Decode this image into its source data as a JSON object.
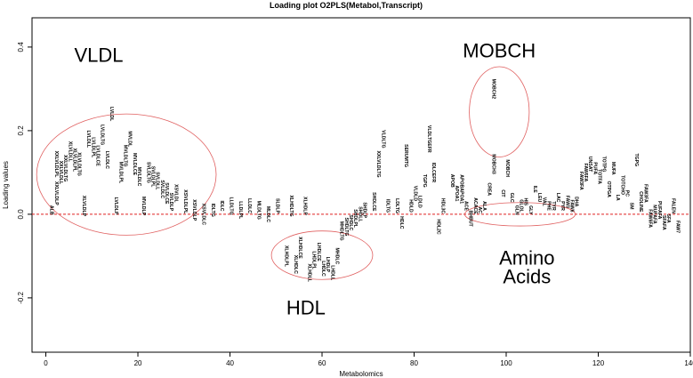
{
  "chart_data": {
    "type": "scatter",
    "title": "Loading plot O2PLS(Metabol,Transcript)",
    "xlabel": "Metabolomics",
    "ylabel": "Loading values",
    "xlim": [
      -3,
      140
    ],
    "ylim": [
      -0.33,
      0.47
    ],
    "x_ticks": [
      0,
      20,
      40,
      60,
      80,
      100,
      120,
      140
    ],
    "y_ticks": [
      -0.2,
      0.0,
      0.2,
      0.4
    ],
    "reference_line": {
      "y": 0.0,
      "style": "dashed",
      "color": "#e02020"
    },
    "points": [
      {
        "x": 1,
        "y": 0.01,
        "label": "ALB"
      },
      {
        "x": 2,
        "y": 0.05,
        "label": "XXLVLDLP"
      },
      {
        "x": 2,
        "y": 0.12,
        "label": "XXLVLDLPL"
      },
      {
        "x": 3,
        "y": 0.1,
        "label": "XXLVLDLL"
      },
      {
        "x": 4,
        "y": 0.11,
        "label": "XXLVLDLTG"
      },
      {
        "x": 5,
        "y": 0.15,
        "label": "XLVLDLL"
      },
      {
        "x": 6,
        "y": 0.13,
        "label": "XLVLDLPL"
      },
      {
        "x": 7,
        "y": 0.12,
        "label": "XLVLDLTG"
      },
      {
        "x": 8,
        "y": 0.02,
        "label": "XLVLDLP"
      },
      {
        "x": 9,
        "y": 0.18,
        "label": "LVLDLL"
      },
      {
        "x": 10,
        "y": 0.16,
        "label": "LVLDLPL"
      },
      {
        "x": 11,
        "y": 0.14,
        "label": "LVLDLCE"
      },
      {
        "x": 12,
        "y": 0.19,
        "label": "LVLDLTG"
      },
      {
        "x": 13,
        "y": 0.13,
        "label": "LVLDLC"
      },
      {
        "x": 14,
        "y": 0.24,
        "label": "LVLDL"
      },
      {
        "x": 15,
        "y": 0.02,
        "label": "LVLDLP"
      },
      {
        "x": 16,
        "y": 0.1,
        "label": "MVLDLPL"
      },
      {
        "x": 17,
        "y": 0.14,
        "label": "MVLDLTG"
      },
      {
        "x": 18,
        "y": 0.18,
        "label": "MVLDL"
      },
      {
        "x": 19,
        "y": 0.12,
        "label": "MVLDLCE"
      },
      {
        "x": 20,
        "y": 0.09,
        "label": "MVLDLC"
      },
      {
        "x": 21,
        "y": 0.02,
        "label": "MVLDLP"
      },
      {
        "x": 22,
        "y": 0.1,
        "label": "SVLDLTG"
      },
      {
        "x": 23,
        "y": 0.09,
        "label": "SVLDLPL"
      },
      {
        "x": 24,
        "y": 0.08,
        "label": "SVLDLL"
      },
      {
        "x": 25,
        "y": 0.06,
        "label": "SVLDLC"
      },
      {
        "x": 26,
        "y": 0.05,
        "label": "SVLDLCE"
      },
      {
        "x": 27,
        "y": 0.03,
        "label": "SVLDLP"
      },
      {
        "x": 28,
        "y": 0.05,
        "label": "XSVLDL"
      },
      {
        "x": 30,
        "y": 0.03,
        "label": "XSVLDLPL"
      },
      {
        "x": 32,
        "y": 0.01,
        "label": "XSVLDLP"
      },
      {
        "x": 34,
        "y": 0.0,
        "label": "XSVLDLC"
      },
      {
        "x": 36,
        "y": 0.01,
        "label": "IDLTG"
      },
      {
        "x": 38,
        "y": 0.02,
        "label": "IDLC"
      },
      {
        "x": 40,
        "y": 0.02,
        "label": "LLDLTG"
      },
      {
        "x": 42,
        "y": 0.01,
        "label": "LLDLPL"
      },
      {
        "x": 44,
        "y": 0.02,
        "label": "LLDLC"
      },
      {
        "x": 46,
        "y": 0.01,
        "label": "MLDLTG"
      },
      {
        "x": 48,
        "y": 0.0,
        "label": "MLDLC"
      },
      {
        "x": 50,
        "y": 0.02,
        "label": "SLDLP"
      },
      {
        "x": 52,
        "y": -0.1,
        "label": "XLHDLPL"
      },
      {
        "x": 53,
        "y": 0.02,
        "label": "XLHDLTG"
      },
      {
        "x": 54,
        "y": -0.12,
        "label": "XLHDLC"
      },
      {
        "x": 55,
        "y": -0.08,
        "label": "XLHDLCE"
      },
      {
        "x": 56,
        "y": 0.02,
        "label": "XLHDLP"
      },
      {
        "x": 57,
        "y": -0.14,
        "label": "XLHDLL"
      },
      {
        "x": 58,
        "y": -0.11,
        "label": "LHDLPL"
      },
      {
        "x": 59,
        "y": -0.09,
        "label": "LHDLCE"
      },
      {
        "x": 60,
        "y": -0.13,
        "label": "LHDLC"
      },
      {
        "x": 61,
        "y": -0.12,
        "label": "LHDLP"
      },
      {
        "x": 62,
        "y": -0.14,
        "label": "LHDLL"
      },
      {
        "x": 63,
        "y": -0.1,
        "label": "MHDLC"
      },
      {
        "x": 64,
        "y": -0.04,
        "label": "MHDLTG"
      },
      {
        "x": 65,
        "y": -0.03,
        "label": "SHDLTG"
      },
      {
        "x": 66,
        "y": -0.02,
        "label": "SHDLC"
      },
      {
        "x": 67,
        "y": -0.01,
        "label": "SHDLPL"
      },
      {
        "x": 68,
        "y": 0.0,
        "label": "SHDLL"
      },
      {
        "x": 69,
        "y": 0.01,
        "label": "SHDLP"
      },
      {
        "x": 71,
        "y": 0.03,
        "label": "SHDLCE"
      },
      {
        "x": 72,
        "y": 0.12,
        "label": "XXLVLDLTG"
      },
      {
        "x": 73,
        "y": 0.18,
        "label": "VLDLTG"
      },
      {
        "x": 74,
        "y": 0.02,
        "label": "IDLTG"
      },
      {
        "x": 76,
        "y": 0.02,
        "label": "LDLTG"
      },
      {
        "x": 77,
        "y": -0.02,
        "label": "HDLC"
      },
      {
        "x": 78,
        "y": 0.14,
        "label": "SERUMTG"
      },
      {
        "x": 79,
        "y": 0.02,
        "label": "HDLD"
      },
      {
        "x": 80,
        "y": 0.05,
        "label": "VLDLD"
      },
      {
        "x": 81,
        "y": 0.03,
        "label": "LDLD"
      },
      {
        "x": 82,
        "y": 0.08,
        "label": "TGPG"
      },
      {
        "x": 83,
        "y": 0.18,
        "label": "VLDLTGEFR"
      },
      {
        "x": 84,
        "y": 0.1,
        "label": "IDLCEFR"
      },
      {
        "x": 85,
        "y": -0.03,
        "label": "HDL2C"
      },
      {
        "x": 86,
        "y": 0.02,
        "label": "HDL3C"
      },
      {
        "x": 88,
        "y": 0.08,
        "label": "APOB"
      },
      {
        "x": 89,
        "y": 0.05,
        "label": "APOA1"
      },
      {
        "x": 90,
        "y": 0.06,
        "label": "APOBAPOA1"
      },
      {
        "x": 91,
        "y": 0.02,
        "label": "ACE"
      },
      {
        "x": 92,
        "y": -0.01,
        "label": "BHBUT"
      },
      {
        "x": 93,
        "y": 0.02,
        "label": "ACACE"
      },
      {
        "x": 94,
        "y": 0.01,
        "label": "AC"
      },
      {
        "x": 95,
        "y": 0.02,
        "label": "ALA"
      },
      {
        "x": 96,
        "y": 0.06,
        "label": "CREA"
      },
      {
        "x": 97,
        "y": 0.12,
        "label": "MOBCH3"
      },
      {
        "x": 97,
        "y": 0.3,
        "label": "MOBCH2"
      },
      {
        "x": 99,
        "y": 0.05,
        "label": "CIT"
      },
      {
        "x": 100,
        "y": 0.11,
        "label": "MOBCH"
      },
      {
        "x": 101,
        "y": 0.04,
        "label": "GLC"
      },
      {
        "x": 102,
        "y": 0.01,
        "label": "GLN"
      },
      {
        "x": 103,
        "y": 0.02,
        "label": "GLOL"
      },
      {
        "x": 104,
        "y": 0.03,
        "label": "HIS"
      },
      {
        "x": 105,
        "y": 0.01,
        "label": "GLY"
      },
      {
        "x": 106,
        "y": 0.06,
        "label": "ILE"
      },
      {
        "x": 107,
        "y": 0.04,
        "label": "LEU"
      },
      {
        "x": 108,
        "y": 0.03,
        "label": "VAL"
      },
      {
        "x": 109,
        "y": 0.02,
        "label": "PHE"
      },
      {
        "x": 110,
        "y": 0.02,
        "label": "TYR"
      },
      {
        "x": 111,
        "y": 0.04,
        "label": "LAC"
      },
      {
        "x": 112,
        "y": 0.02,
        "label": "PYR"
      },
      {
        "x": 113,
        "y": 0.03,
        "label": "FAW3"
      },
      {
        "x": 114,
        "y": 0.02,
        "label": "FAW6"
      },
      {
        "x": 115,
        "y": 0.03,
        "label": "DHA"
      },
      {
        "x": 116,
        "y": 0.08,
        "label": "FAW3FA"
      },
      {
        "x": 117,
        "y": 0.1,
        "label": "FAW6FA"
      },
      {
        "x": 118,
        "y": 0.12,
        "label": "UNSAT"
      },
      {
        "x": 119,
        "y": 0.11,
        "label": "PUFA"
      },
      {
        "x": 120,
        "y": 0.09,
        "label": "TOTFA"
      },
      {
        "x": 121,
        "y": 0.12,
        "label": "TOTPG"
      },
      {
        "x": 122,
        "y": 0.06,
        "label": "OTPGA"
      },
      {
        "x": 123,
        "y": 0.11,
        "label": "MUFA"
      },
      {
        "x": 124,
        "y": 0.04,
        "label": "LA"
      },
      {
        "x": 125,
        "y": 0.07,
        "label": "TOTCHO"
      },
      {
        "x": 126,
        "y": 0.05,
        "label": "PC"
      },
      {
        "x": 127,
        "y": 0.02,
        "label": "SM"
      },
      {
        "x": 128,
        "y": 0.13,
        "label": "TGPG"
      },
      {
        "x": 129,
        "y": 0.03,
        "label": "CHOLINE"
      },
      {
        "x": 130,
        "y": 0.05,
        "label": "FAW3FA"
      },
      {
        "x": 131,
        "y": -0.01,
        "label": "FAW6FA"
      },
      {
        "x": 132,
        "y": 0.0,
        "label": "MUFAFA"
      },
      {
        "x": 133,
        "y": 0.01,
        "label": "PUFAFA"
      },
      {
        "x": 134,
        "y": -0.02,
        "label": "SFAFA"
      },
      {
        "x": 135,
        "y": -0.01,
        "label": "SFA"
      },
      {
        "x": 136,
        "y": 0.02,
        "label": "FALEN"
      },
      {
        "x": 137,
        "y": -0.03,
        "label": "FAW7"
      }
    ],
    "annotations": [
      {
        "text": "VLDL",
        "x": 11.5,
        "y": 0.365,
        "size": "large"
      },
      {
        "text": "MOBCH",
        "x": 98.5,
        "y": 0.375,
        "size": "large"
      },
      {
        "text": "HDL",
        "x": 56.5,
        "y": -0.24,
        "size": "large"
      },
      {
        "text": "Amino",
        "x": 104.5,
        "y": -0.12,
        "size": "large"
      },
      {
        "text": "Acids",
        "x": 104.5,
        "y": -0.165,
        "size": "large"
      }
    ],
    "regions": [
      {
        "name": "VLDL",
        "cx": 17.5,
        "cy": 0.095,
        "rx": 19.5,
        "ry": 0.145
      },
      {
        "name": "MOBCH",
        "cx": 98.5,
        "cy": 0.245,
        "rx": 6.5,
        "ry": 0.108
      },
      {
        "name": "HDL",
        "cx": 60,
        "cy": -0.098,
        "rx": 11,
        "ry": 0.058
      },
      {
        "name": "Amino Acids",
        "cx": 103,
        "cy": 0.0,
        "rx": 12,
        "ry": 0.028
      }
    ],
    "grid": false,
    "legend": "none",
    "colors": {
      "points": "#000000",
      "regions": "#e06060",
      "reference": "#e02020",
      "axis": "#000000"
    }
  }
}
